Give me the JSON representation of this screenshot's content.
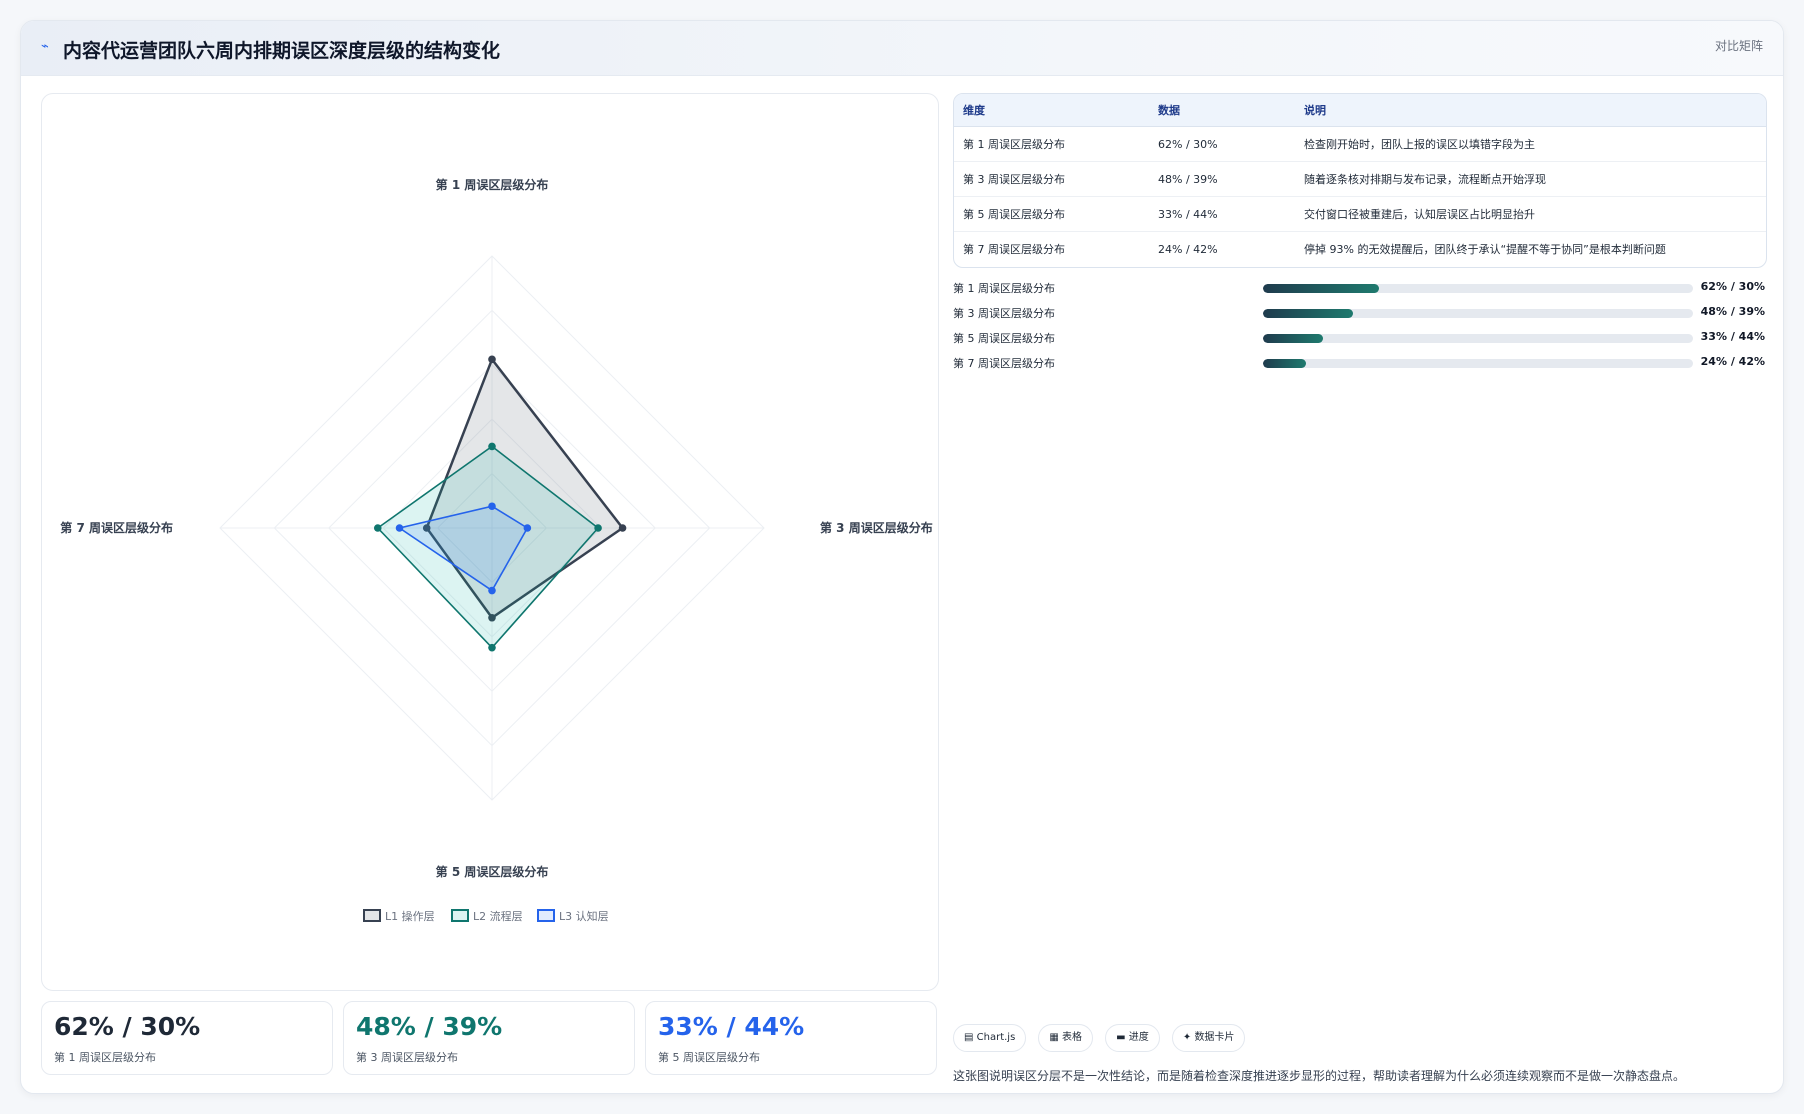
{
  "header": {
    "icon": "chart-line-icon",
    "title": "内容代运营团队六周内排期误区深度层级的结构变化",
    "mode_label": "对比矩阵"
  },
  "chart_data": {
    "type": "radar",
    "axes": [
      "第 1 周误区层级分布",
      "第 3 周误区层级分布",
      "第 5 周误区层级分布",
      "第 7 周误区层级分布"
    ],
    "range": [
      0,
      100
    ],
    "series": [
      {
        "name": "L1 操作层",
        "values": [
          62,
          48,
          33,
          24
        ],
        "color": "#374151",
        "fill": "rgba(107,114,128,0.18)"
      },
      {
        "name": "L2 流程层",
        "values": [
          30,
          39,
          44,
          42
        ],
        "color": "#0f766e",
        "fill": "rgba(20,184,166,0.15)"
      },
      {
        "name": "L3 认知层",
        "values": [
          8,
          13,
          23,
          34
        ],
        "color": "#2563eb",
        "fill": "rgba(59,130,246,0.15)"
      }
    ]
  },
  "stats": [
    {
      "value": "62% / 30%",
      "label": "第 1 周误区层级分布",
      "color": "#1f2937"
    },
    {
      "value": "48% / 39%",
      "label": "第 3 周误区层级分布",
      "color": "#0f766e"
    },
    {
      "value": "33% / 44%",
      "label": "第 5 周误区层级分布",
      "color": "#2563eb"
    }
  ],
  "table": {
    "headers": [
      "维度",
      "数据",
      "说明"
    ],
    "rows": [
      [
        "第 1 周误区层级分布",
        "62% / 30%",
        "检查刚开始时，团队上报的误区以填错字段为主"
      ],
      [
        "第 3 周误区层级分布",
        "48% / 39%",
        "随着逐条核对排期与发布记录，流程断点开始浮现"
      ],
      [
        "第 5 周误区层级分布",
        "33% / 44%",
        "交付窗口径被重建后，认知层误区占比明显抬升"
      ],
      [
        "第 7 周误区层级分布",
        "24% / 42%",
        "停掉 93% 的无效提醒后，团队终于承认“提醒不等于协同”是根本判断问题"
      ]
    ]
  },
  "progress": [
    {
      "label": "第 1 周误区层级分布",
      "value": "62% / 30%",
      "fill": 0.27
    },
    {
      "label": "第 3 周误区层级分布",
      "value": "48% / 39%",
      "fill": 0.21
    },
    {
      "label": "第 5 周误区层级分布",
      "value": "33% / 44%",
      "fill": 0.14
    },
    {
      "label": "第 7 周误区层级分布",
      "value": "24% / 42%",
      "fill": 0.1
    }
  ],
  "tags": [
    {
      "icon": "chart-icon",
      "glyph": "▤",
      "label": "Chart.js"
    },
    {
      "icon": "table-icon",
      "glyph": "▦",
      "label": "表格"
    },
    {
      "icon": "progress-icon",
      "glyph": "▬",
      "label": "进度"
    },
    {
      "icon": "card-icon",
      "glyph": "✦",
      "label": "数据卡片"
    }
  ],
  "note": "这张图说明误区分层不是一次性结论，而是随着检查深度推进逐步显形的过程，帮助读者理解为什么必须连续观察而不是做一次静态盘点。"
}
